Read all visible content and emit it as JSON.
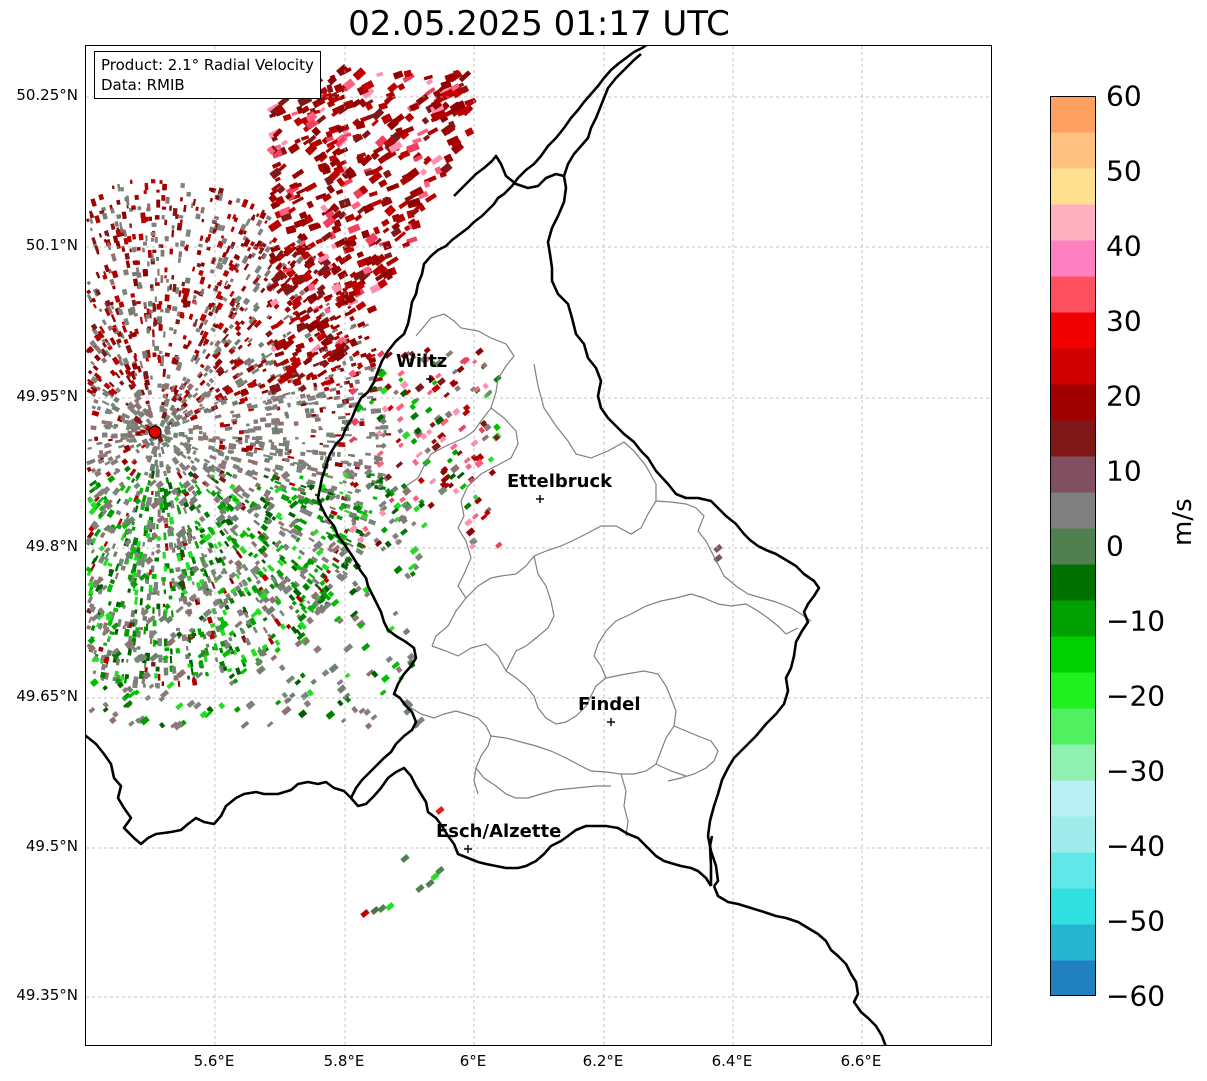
{
  "title": "02.05.2025 01:17 UTC",
  "info": {
    "product": "Product: 2.1° Radial Velocity",
    "data": "Data: RMIB"
  },
  "axes": {
    "lat_ticks": [
      "50.25°N",
      "50.1°N",
      "49.95°N",
      "49.8°N",
      "49.65°N",
      "49.5°N",
      "49.35°N"
    ],
    "lon_ticks": [
      "5.6°E",
      "5.8°E",
      "6°E",
      "6.2°E",
      "6.4°E",
      "6.6°E"
    ]
  },
  "places": [
    {
      "name": "Wiltz"
    },
    {
      "name": "Ettelbruck"
    },
    {
      "name": "Findel"
    },
    {
      "name": "Esch/Alzette"
    }
  ],
  "colorbar": {
    "label": "m/s",
    "ticks": [
      "60",
      "50",
      "40",
      "30",
      "20",
      "10",
      "0",
      "−10",
      "−20",
      "−30",
      "−40",
      "−50",
      "−60"
    ],
    "range": [
      -60,
      60
    ],
    "colors": [
      "#2080c0",
      "#26b4d0",
      "#30e0e0",
      "#60e8e8",
      "#a0ecec",
      "#b8f0f4",
      "#90f0b0",
      "#50f060",
      "#20f020",
      "#00d000",
      "#00a000",
      "#007000",
      "#508050",
      "#808080",
      "#805060",
      "#801818",
      "#a00000",
      "#d00000",
      "#f00000",
      "#ff5060",
      "#ff80c0",
      "#ffb0c0",
      "#ffe090",
      "#ffc080",
      "#ffa060"
    ]
  },
  "colors": {
    "border": "#000000",
    "district": "#808080",
    "grid": "#b0b0b0",
    "radar_site": "#e00000"
  }
}
